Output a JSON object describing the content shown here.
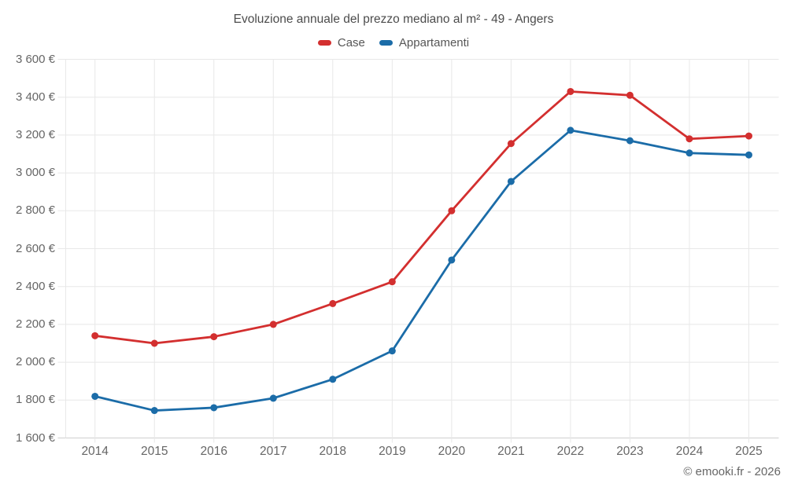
{
  "page": {
    "footer": "© emooki.fr - 2026"
  },
  "chart_data": {
    "type": "line",
    "title": "Evoluzione annuale del prezzo mediano al m² - 49 - Angers",
    "categories": [
      "2014",
      "2015",
      "2016",
      "2017",
      "2018",
      "2019",
      "2020",
      "2021",
      "2022",
      "2023",
      "2024",
      "2025"
    ],
    "series": [
      {
        "name": "Case",
        "color": "#d32f2f",
        "values": [
          2140,
          2100,
          2135,
          2200,
          2310,
          2425,
          2800,
          3155,
          3430,
          3410,
          3180,
          3195
        ]
      },
      {
        "name": "Appartamenti",
        "color": "#1b6ca8",
        "values": [
          1820,
          1745,
          1760,
          1810,
          1910,
          2060,
          2540,
          2955,
          3225,
          3170,
          3105,
          3095
        ]
      }
    ],
    "ylim": [
      1600,
      3600
    ],
    "ytick_step": 200,
    "ytick_labels": [
      "1 600 €",
      "1 800 €",
      "2 000 €",
      "2 200 €",
      "2 400 €",
      "2 600 €",
      "2 800 €",
      "3 000 €",
      "3 200 €",
      "3 400 €",
      "3 600 €"
    ],
    "y_unit": "€",
    "grid": "on",
    "legend_position": "top",
    "colors": {
      "gridline": "#e8e8e8",
      "axis_line": "#cfcfcf",
      "title_text": "#4c4c4c",
      "label_text": "#666666"
    }
  }
}
